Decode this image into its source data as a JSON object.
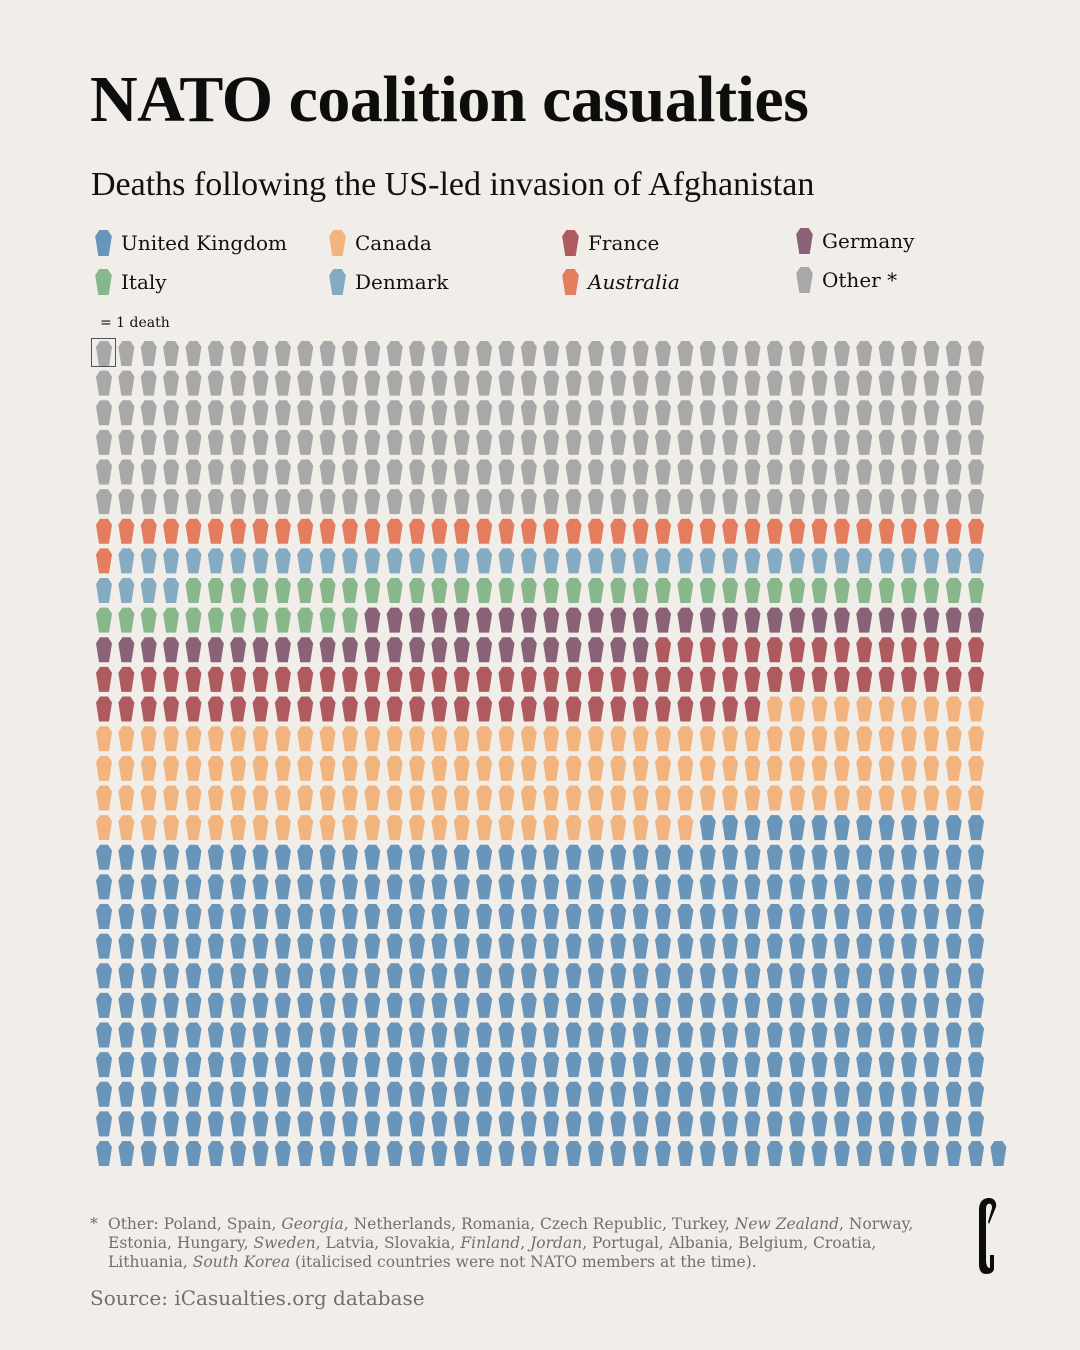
{
  "header": {
    "title": "NATO coalition casualties",
    "subtitle": "Deaths following the US-led invasion of Afghanistan"
  },
  "legend": {
    "items": [
      {
        "label": "United Kingdom",
        "color": "#6895B9",
        "italic": false
      },
      {
        "label": "Canada",
        "color": "#F2B47E",
        "italic": false
      },
      {
        "label": "France",
        "color": "#AE5A5E",
        "italic": false
      },
      {
        "label": "Germany",
        "color": "#8A6278",
        "italic": false
      },
      {
        "label": "Italy",
        "color": "#88B78C",
        "italic": false
      },
      {
        "label": "Denmark",
        "color": "#84ABC2",
        "italic": false
      },
      {
        "label": "Australia",
        "color": "#E47C5E",
        "italic": true
      },
      {
        "label": "Other *",
        "color": "#A8A8A8",
        "italic": false
      }
    ],
    "unit_label": "= 1 death"
  },
  "chart_data": {
    "type": "waffle",
    "title": "NATO coalition casualties",
    "subtitle": "Deaths following the US-led invasion of Afghanistan",
    "unit": "1 icon = 1 death",
    "columns": 40,
    "fill_order": [
      "Other *",
      "Australia",
      "Denmark",
      "Italy",
      "Germany",
      "France",
      "Canada",
      "United Kingdom"
    ],
    "series": [
      {
        "name": "Other *",
        "value": 240,
        "color": "#A8A8A8"
      },
      {
        "name": "Australia",
        "value": 41,
        "color": "#E47C5E"
      },
      {
        "name": "Denmark",
        "value": 43,
        "color": "#84ABC2"
      },
      {
        "name": "Italy",
        "value": 48,
        "color": "#88B78C"
      },
      {
        "name": "Germany",
        "value": 53,
        "color": "#8A6278"
      },
      {
        "name": "France",
        "value": 85,
        "color": "#AE5A5E"
      },
      {
        "name": "Canada",
        "value": 157,
        "color": "#F2B47E"
      },
      {
        "name": "United Kingdom",
        "value": 454,
        "color": "#6895B9"
      }
    ],
    "total": 1121,
    "legend_position": "top"
  },
  "footnote": {
    "marker": "*",
    "parts": [
      {
        "text": "Other: Poland, Spain, ",
        "italic": false
      },
      {
        "text": "Georgia",
        "italic": true
      },
      {
        "text": ", Netherlands, Romania, Czech Republic, Turkey, ",
        "italic": false
      },
      {
        "text": "New Zealand",
        "italic": true
      },
      {
        "text": ", Norway, Estonia, Hungary, ",
        "italic": false
      },
      {
        "text": "Sweden",
        "italic": true
      },
      {
        "text": ", Latvia, Slovakia, ",
        "italic": false
      },
      {
        "text": "Finland",
        "italic": true
      },
      {
        "text": ", ",
        "italic": false
      },
      {
        "text": "Jordan",
        "italic": true
      },
      {
        "text": ", Portugal, Albania, Belgium, Croatia, Lithuania, ",
        "italic": false
      },
      {
        "text": "South Korea",
        "italic": true
      },
      {
        "text": " (italicised countries were not NATO members at the time).",
        "italic": false
      }
    ]
  },
  "source": "Source: iCasualties.org database",
  "logo": {
    "text": "e"
  }
}
